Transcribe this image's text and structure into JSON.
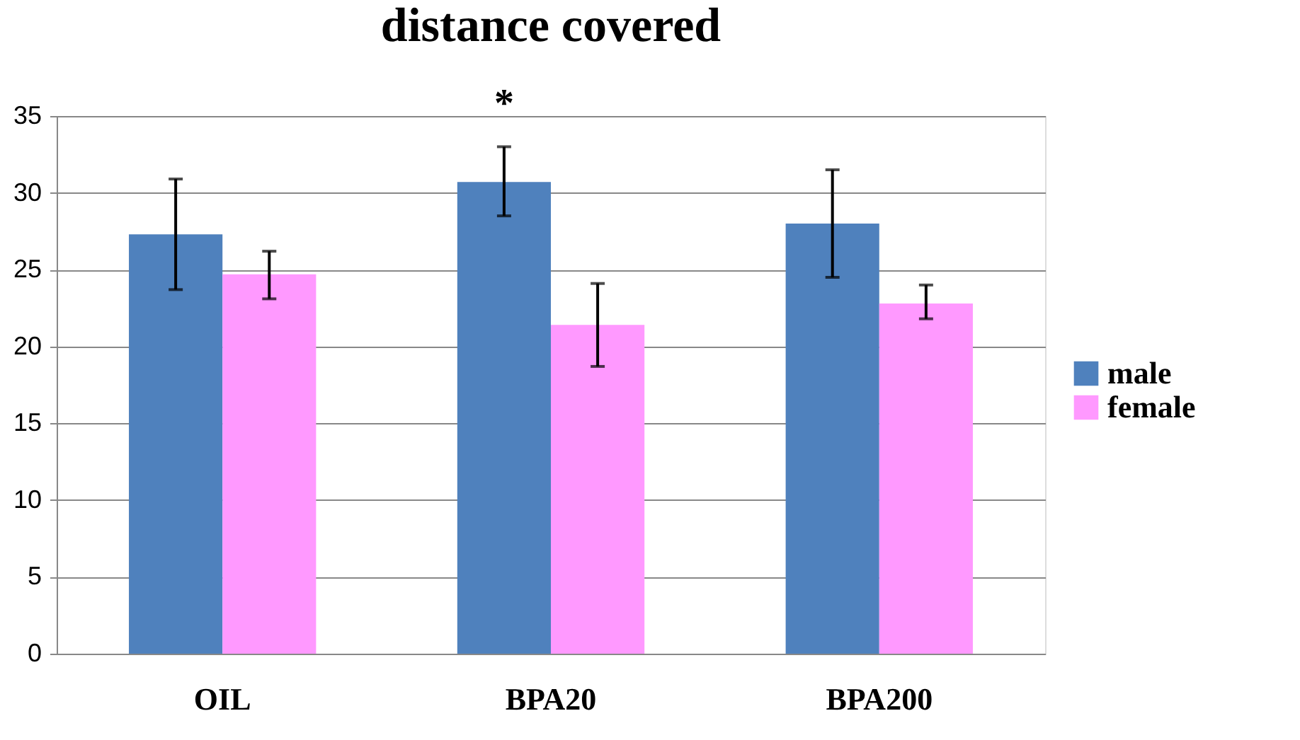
{
  "chart_data": {
    "type": "bar",
    "title": "distance covered",
    "categories": [
      "OIL",
      "BPA20",
      "BPA200"
    ],
    "series": [
      {
        "name": "male",
        "color": "#4f81bd",
        "values": [
          27.3,
          30.7,
          28.0
        ],
        "errors": [
          [
            23.7,
            30.9
          ],
          [
            28.5,
            33.0
          ],
          [
            24.5,
            31.5
          ]
        ]
      },
      {
        "name": "female",
        "color": "#ff99ff",
        "values": [
          24.7,
          21.4,
          22.8
        ],
        "errors": [
          [
            23.1,
            26.2
          ],
          [
            18.7,
            24.1
          ],
          [
            21.8,
            24.0
          ]
        ]
      }
    ],
    "ylim": [
      0,
      35
    ],
    "yticks": [
      0,
      5,
      10,
      15,
      20,
      25,
      30,
      35
    ],
    "grid": "y",
    "legend": "right",
    "annotations": [
      "*"
    ]
  }
}
